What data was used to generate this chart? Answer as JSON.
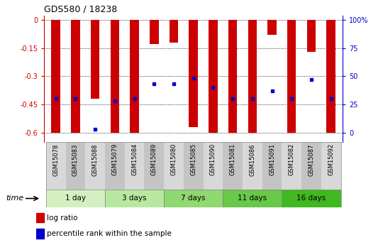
{
  "title": "GDS580 / 18238",
  "samples": [
    "GSM15078",
    "GSM15083",
    "GSM15088",
    "GSM15079",
    "GSM15084",
    "GSM15089",
    "GSM15080",
    "GSM15085",
    "GSM15090",
    "GSM15081",
    "GSM15086",
    "GSM15091",
    "GSM15082",
    "GSM15087",
    "GSM15092"
  ],
  "log_ratio": [
    -0.6,
    -0.6,
    -0.42,
    -0.6,
    -0.6,
    -0.13,
    -0.12,
    -0.57,
    -0.6,
    -0.6,
    -0.6,
    -0.08,
    -0.6,
    -0.17,
    -0.6
  ],
  "percentile_rank": [
    0.3,
    0.3,
    0.03,
    0.28,
    0.3,
    0.43,
    0.43,
    0.48,
    0.4,
    0.3,
    0.3,
    0.37,
    0.3,
    0.47,
    0.3
  ],
  "groups": [
    {
      "label": "1 day",
      "indices": [
        0,
        1,
        2
      ],
      "color": "#d4f0c0"
    },
    {
      "label": "3 days",
      "indices": [
        3,
        4,
        5
      ],
      "color": "#b8e8a0"
    },
    {
      "label": "7 days",
      "indices": [
        6,
        7,
        8
      ],
      "color": "#90d870"
    },
    {
      "label": "11 days",
      "indices": [
        9,
        10,
        11
      ],
      "color": "#68c848"
    },
    {
      "label": "16 days",
      "indices": [
        12,
        13,
        14
      ],
      "color": "#40b820"
    }
  ],
  "ylim": [
    -0.65,
    0.02
  ],
  "yticks": [
    0,
    -0.15,
    -0.3,
    -0.45,
    -0.6
  ],
  "yticklabels": [
    "0",
    "-0.15",
    "-0.3",
    "-0.45",
    "-0.6"
  ],
  "right_yticklabels": [
    "0",
    "25",
    "50",
    "75",
    "100%"
  ],
  "bar_color": "#cc0000",
  "dot_color": "#0000cc",
  "bar_width": 0.45,
  "background_color": "#ffffff",
  "sample_bg_even": "#d8d8d8",
  "sample_bg_odd": "#c4c4c4",
  "time_label": "time",
  "legend_log_ratio": "log ratio",
  "legend_percentile": "percentile rank within the sample"
}
